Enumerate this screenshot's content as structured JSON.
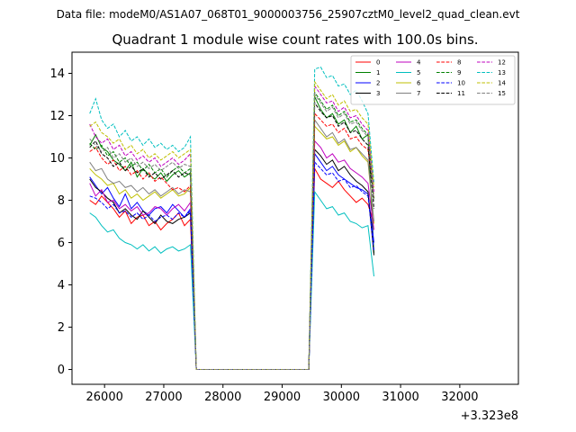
{
  "suptitle": "Data file: modeM0/AS1A07_068T01_9000003756_25907cztM0_level2_quad_clean.evt",
  "chart_data": {
    "type": "line",
    "title": "Quadrant 1 module wise count rates with 100.0s bins.",
    "xlabel": "",
    "ylabel": "",
    "x_offset_label": "+3.323e8",
    "x_start": 25750,
    "x_step": 100,
    "xlim": [
      25450,
      32990
    ],
    "ylim": [
      -0.7,
      15.0
    ],
    "xticks": [
      26000,
      27000,
      28000,
      29000,
      30000,
      31000,
      32000
    ],
    "yticks": [
      0,
      2,
      4,
      6,
      8,
      10,
      12,
      14
    ],
    "legend_position": "top-right",
    "legend_ncol": 4,
    "gap_start_index": 18,
    "gap_end_index": 37,
    "series": [
      {
        "name": "0",
        "color": "#ff0000",
        "dash": "solid",
        "before": [
          8.0,
          7.8,
          8.2,
          7.9,
          7.6,
          7.2,
          7.5,
          6.9,
          7.2,
          7.3,
          6.8,
          7.0,
          6.6,
          6.9,
          7.1,
          7.4,
          6.8,
          7.1
        ],
        "after": [
          9.5,
          9.0,
          8.8,
          8.6,
          8.9,
          8.5,
          8.2,
          7.9,
          8.1,
          7.8,
          6.9
        ]
      },
      {
        "name": "1",
        "color": "#008000",
        "dash": "solid",
        "before": [
          10.6,
          11.1,
          10.5,
          10.3,
          9.9,
          9.7,
          9.4,
          9.8,
          9.1,
          9.5,
          9.2,
          9.0,
          9.3,
          8.9,
          9.2,
          9.4,
          9.1,
          9.3
        ],
        "after": [
          12.9,
          12.3,
          11.9,
          12.1,
          11.6,
          11.8,
          11.2,
          11.5,
          10.9,
          11.1,
          5.5
        ]
      },
      {
        "name": "2",
        "color": "#0000ff",
        "dash": "solid",
        "before": [
          9.1,
          8.7,
          8.3,
          8.6,
          8.1,
          7.7,
          8.3,
          7.6,
          7.9,
          7.5,
          7.3,
          7.6,
          7.7,
          7.4,
          7.8,
          7.5,
          7.2,
          7.6
        ],
        "after": [
          10.2,
          9.8,
          9.4,
          9.6,
          9.2,
          9.0,
          8.8,
          8.6,
          8.5,
          8.3,
          6.0
        ]
      },
      {
        "name": "3",
        "color": "#000000",
        "dash": "solid",
        "before": [
          9.0,
          8.6,
          8.4,
          8.1,
          7.9,
          7.4,
          7.6,
          7.3,
          7.1,
          7.5,
          7.2,
          6.9,
          7.3,
          7.0,
          6.9,
          7.1,
          7.2,
          7.4
        ],
        "after": [
          10.4,
          10.1,
          9.7,
          9.9,
          9.4,
          9.6,
          9.2,
          8.9,
          8.7,
          8.4,
          5.4
        ]
      },
      {
        "name": "4",
        "color": "#bf00bf",
        "dash": "solid",
        "before": [
          8.8,
          8.2,
          8.5,
          7.9,
          8.0,
          7.6,
          7.8,
          7.5,
          7.7,
          7.3,
          7.4,
          7.7,
          7.6,
          7.3,
          7.6,
          7.8,
          7.5,
          7.9
        ],
        "after": [
          10.8,
          10.5,
          10.0,
          10.2,
          9.8,
          9.9,
          9.5,
          9.3,
          9.1,
          8.8,
          6.6
        ]
      },
      {
        "name": "5",
        "color": "#00bfbf",
        "dash": "solid",
        "before": [
          7.4,
          7.2,
          6.8,
          6.5,
          6.6,
          6.2,
          6.0,
          5.9,
          5.7,
          5.9,
          5.6,
          5.8,
          5.5,
          5.7,
          5.8,
          5.6,
          5.7,
          5.9
        ],
        "after": [
          8.4,
          8.0,
          7.6,
          7.7,
          7.3,
          7.4,
          7.0,
          6.9,
          6.7,
          6.8,
          4.4
        ]
      },
      {
        "name": "6",
        "color": "#bfbf00",
        "dash": "solid",
        "before": [
          9.5,
          9.2,
          9.0,
          8.7,
          8.8,
          8.3,
          8.5,
          8.1,
          8.3,
          8.0,
          8.2,
          8.4,
          8.1,
          8.3,
          8.5,
          8.2,
          8.3,
          8.6
        ],
        "after": [
          11.5,
          11.2,
          10.9,
          11.0,
          10.6,
          10.8,
          10.3,
          10.5,
          10.1,
          9.8,
          6.9
        ]
      },
      {
        "name": "7",
        "color": "#808080",
        "dash": "solid",
        "before": [
          9.8,
          9.4,
          9.5,
          9.0,
          8.8,
          8.9,
          8.6,
          8.7,
          8.4,
          8.6,
          8.3,
          8.5,
          8.2,
          8.4,
          8.6,
          8.3,
          8.5,
          8.4
        ],
        "after": [
          11.8,
          11.4,
          11.0,
          11.2,
          10.7,
          10.9,
          10.4,
          10.5,
          10.2,
          9.9,
          7.0
        ]
      },
      {
        "name": "8",
        "color": "#ff0000",
        "dash": "dashed",
        "before": [
          10.3,
          10.5,
          10.0,
          9.7,
          9.9,
          9.4,
          9.6,
          9.2,
          9.4,
          9.0,
          9.3,
          8.9,
          9.1,
          8.8,
          8.5,
          8.6,
          8.4,
          8.7
        ],
        "after": [
          12.1,
          11.8,
          11.5,
          11.6,
          11.2,
          11.4,
          10.9,
          11.0,
          10.6,
          10.4,
          8.1
        ]
      },
      {
        "name": "9",
        "color": "#008000",
        "dash": "dashed",
        "before": [
          10.7,
          10.4,
          10.6,
          10.1,
          10.3,
          9.8,
          10.0,
          9.6,
          9.8,
          9.4,
          9.7,
          9.3,
          9.5,
          9.1,
          9.4,
          9.6,
          9.3,
          9.5
        ],
        "after": [
          13.1,
          12.7,
          12.3,
          12.5,
          12.0,
          12.2,
          11.7,
          11.8,
          11.4,
          11.1,
          8.0
        ]
      },
      {
        "name": "10",
        "color": "#0000ff",
        "dash": "dashed",
        "before": [
          8.2,
          8.1,
          7.9,
          7.6,
          7.8,
          7.4,
          7.5,
          7.2,
          7.4,
          7.1,
          7.3,
          7.0,
          7.2,
          7.3,
          7.1,
          7.4,
          7.2,
          7.5
        ],
        "after": [
          9.8,
          9.5,
          9.2,
          9.3,
          8.9,
          9.0,
          8.6,
          8.7,
          8.4,
          8.2,
          5.6
        ]
      },
      {
        "name": "11",
        "color": "#000000",
        "dash": "dashed",
        "before": [
          10.5,
          10.8,
          10.2,
          10.0,
          9.6,
          9.8,
          9.4,
          9.6,
          9.3,
          9.5,
          9.1,
          9.3,
          9.0,
          9.2,
          9.4,
          9.1,
          9.3,
          9.2
        ],
        "after": [
          12.6,
          12.2,
          11.9,
          12.0,
          11.5,
          11.7,
          11.2,
          11.3,
          10.9,
          10.6,
          7.6
        ]
      },
      {
        "name": "12",
        "color": "#bf00bf",
        "dash": "dashed",
        "before": [
          11.6,
          11.0,
          10.7,
          10.9,
          10.4,
          10.6,
          10.1,
          10.3,
          9.9,
          10.1,
          9.8,
          10.0,
          9.6,
          9.8,
          10.0,
          9.7,
          9.9,
          10.2
        ],
        "after": [
          13.4,
          13.0,
          12.6,
          12.7,
          12.2,
          12.4,
          11.9,
          12.0,
          11.6,
          11.3,
          8.4
        ]
      },
      {
        "name": "13",
        "color": "#00bfbf",
        "dash": "dashed",
        "before": [
          12.1,
          12.8,
          11.8,
          11.4,
          11.6,
          11.0,
          11.3,
          10.8,
          11.0,
          10.6,
          10.9,
          10.5,
          10.7,
          10.4,
          10.6,
          10.3,
          10.5,
          11.0
        ],
        "after": [
          14.2,
          14.3,
          13.8,
          13.9,
          13.4,
          13.5,
          13.0,
          13.2,
          12.7,
          12.1,
          8.8
        ]
      },
      {
        "name": "14",
        "color": "#bfbf00",
        "dash": "dashed",
        "before": [
          11.5,
          11.7,
          11.2,
          11.0,
          10.7,
          10.9,
          10.4,
          10.6,
          10.2,
          10.4,
          10.0,
          10.2,
          9.9,
          10.1,
          10.3,
          10.0,
          10.2,
          10.4
        ],
        "after": [
          13.6,
          13.2,
          12.8,
          13.0,
          12.5,
          12.7,
          12.2,
          12.3,
          11.9,
          11.6,
          8.6
        ]
      },
      {
        "name": "15",
        "color": "#808080",
        "dash": "dashed",
        "before": [
          10.9,
          10.6,
          10.3,
          10.5,
          10.0,
          10.2,
          9.8,
          10.0,
          9.6,
          9.8,
          9.5,
          9.7,
          9.4,
          9.6,
          9.8,
          9.5,
          9.7,
          9.6
        ],
        "after": [
          13.0,
          12.6,
          12.2,
          12.4,
          11.9,
          12.1,
          11.6,
          11.7,
          11.3,
          11.0,
          7.9
        ]
      }
    ]
  }
}
